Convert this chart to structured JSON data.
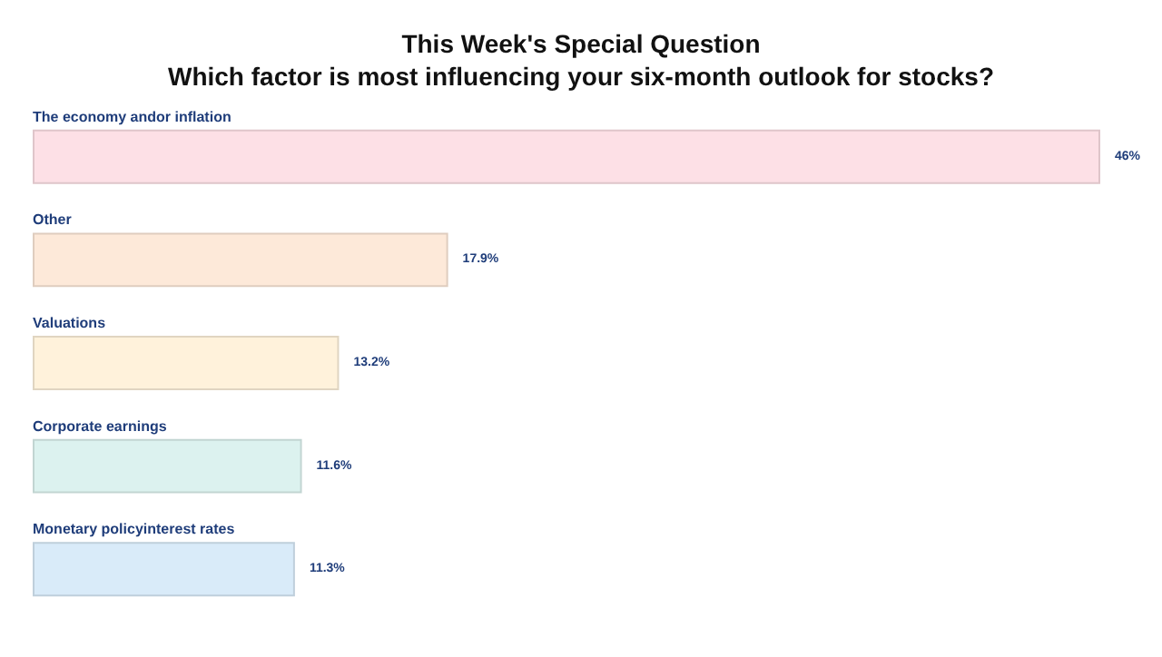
{
  "chart_data": {
    "type": "bar",
    "orientation": "horizontal",
    "title": "This Week's Special Question",
    "subtitle": "Which factor is most influencing your six-month outlook for stocks?",
    "categories": [
      "The economy andor inflation",
      "Other",
      "Valuations",
      "Corporate earnings",
      "Monetary policyinterest rates"
    ],
    "values": [
      46,
      17.9,
      13.2,
      11.6,
      11.3
    ],
    "colors": [
      "#fde0e6",
      "#fde9d9",
      "#fff2db",
      "#dcf2ef",
      "#d9ebf9"
    ],
    "value_labels": [
      "46%",
      "17.9%",
      "13.2%",
      "11.6%",
      "11.3%"
    ]
  }
}
